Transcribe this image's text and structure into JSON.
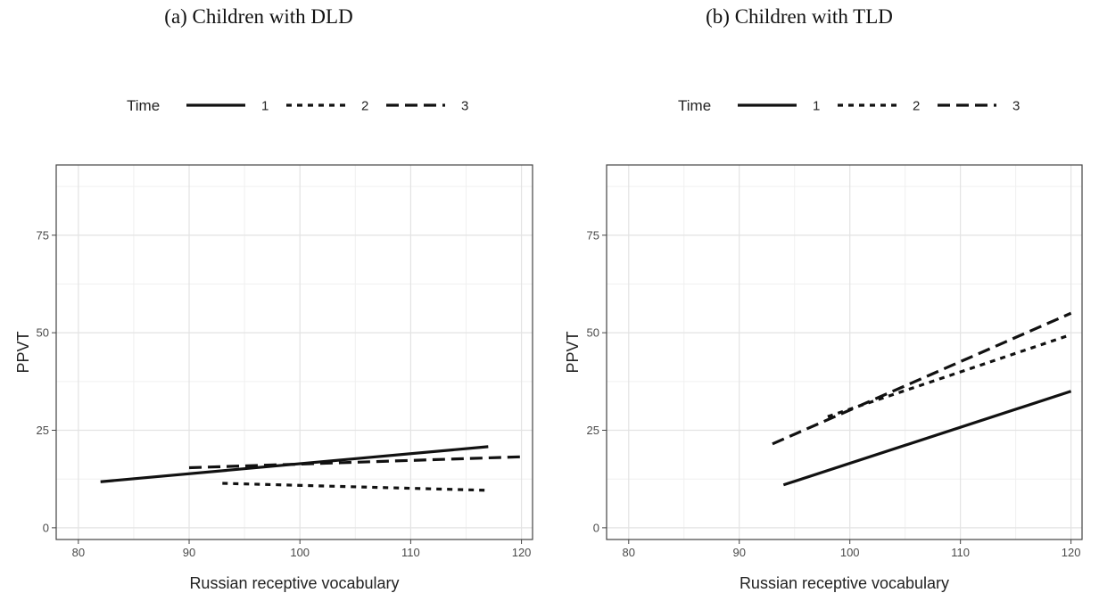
{
  "chart_data": [
    {
      "type": "line",
      "title": "(a) Children with DLD",
      "xlabel": "Russian receptive vocabulary",
      "ylabel": "PPVT",
      "xlim": [
        78,
        121
      ],
      "ylim": [
        -3,
        93
      ],
      "xticks": [
        80,
        90,
        100,
        110,
        120
      ],
      "yticks": [
        0,
        25,
        50,
        75
      ],
      "grid": true,
      "legend": {
        "title": "Time",
        "placement": "top",
        "labels": [
          "1",
          "2",
          "3"
        ]
      },
      "series": [
        {
          "name": "1",
          "dash": "solid",
          "x": [
            82,
            117
          ],
          "y": [
            11.8,
            20.8
          ]
        },
        {
          "name": "2",
          "dash": "dotted",
          "x": [
            93,
            117
          ],
          "y": [
            11.4,
            9.6
          ]
        },
        {
          "name": "3",
          "dash": "dashed",
          "x": [
            90,
            120
          ],
          "y": [
            15.4,
            18.2
          ]
        }
      ]
    },
    {
      "type": "line",
      "title": "(b) Children with TLD",
      "xlabel": "Russian receptive vocabulary",
      "ylabel": "PPVT",
      "xlim": [
        78,
        121
      ],
      "ylim": [
        -3,
        93
      ],
      "xticks": [
        80,
        90,
        100,
        110,
        120
      ],
      "yticks": [
        0,
        25,
        50,
        75
      ],
      "grid": true,
      "legend": {
        "title": "Time",
        "placement": "top",
        "labels": [
          "1",
          "2",
          "3"
        ]
      },
      "series": [
        {
          "name": "1",
          "dash": "solid",
          "x": [
            94,
            120
          ],
          "y": [
            11.0,
            35.0
          ]
        },
        {
          "name": "2",
          "dash": "dotted",
          "x": [
            98,
            120
          ],
          "y": [
            28.5,
            49.5
          ]
        },
        {
          "name": "3",
          "dash": "dashed",
          "x": [
            93,
            120
          ],
          "y": [
            21.5,
            55.0
          ]
        }
      ]
    }
  ]
}
